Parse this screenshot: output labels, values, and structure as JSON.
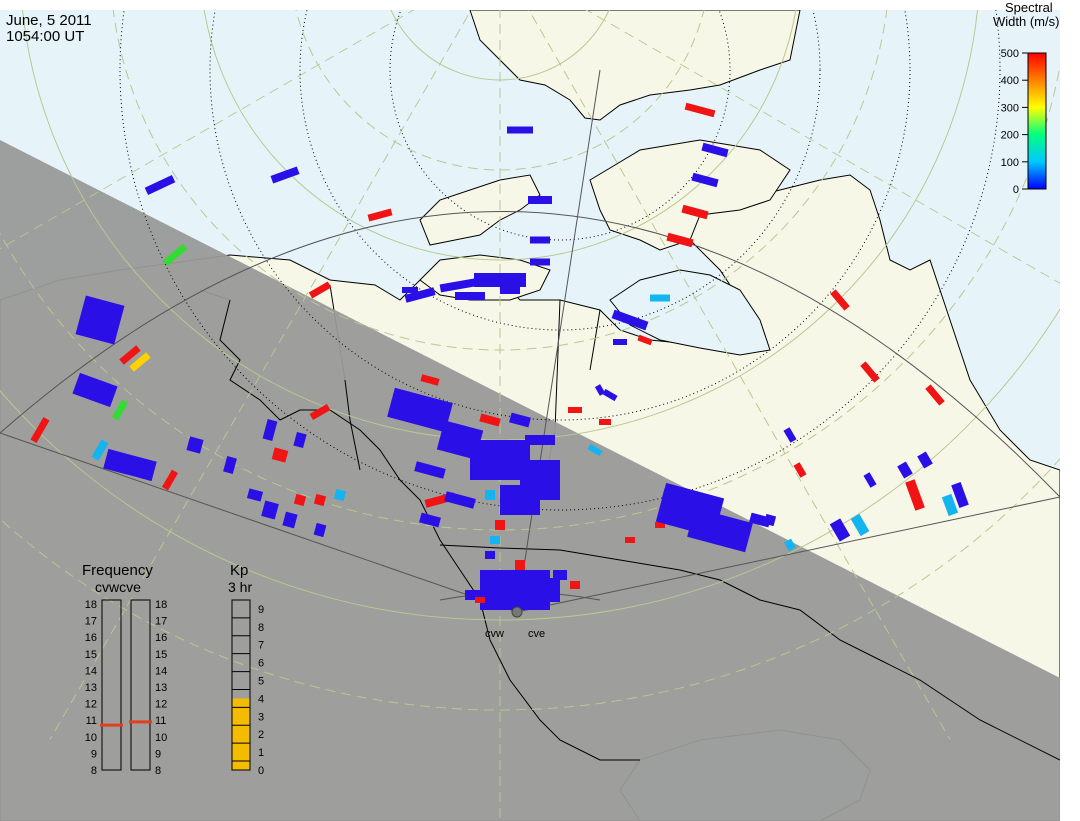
{
  "header": {
    "date": "June, 5 2011",
    "time": "1054:00 UT"
  },
  "colorbar": {
    "title_line1": "Spectral",
    "title_line2": "Width (m/s)",
    "ticks": [
      "500",
      "400",
      "300",
      "200",
      "100",
      "0"
    ],
    "gradient": [
      "#0000ff",
      "#00c8ff",
      "#00ff80",
      "#ffff00",
      "#ff8000",
      "#ff0000"
    ]
  },
  "frequency": {
    "title": "Frequency",
    "radars_label": "cvwcve",
    "ticks": [
      "18",
      "17",
      "16",
      "15",
      "14",
      "13",
      "12",
      "11",
      "10",
      "9",
      "8"
    ],
    "cvw_mhz": 10.7,
    "cve_mhz": 10.9,
    "marker_color": "#e0401a"
  },
  "kp": {
    "title": "Kp",
    "subtitle": "3 hr",
    "ticks": [
      "9",
      "8",
      "7",
      "6",
      "5",
      "4",
      "3",
      "2",
      "1",
      "0"
    ],
    "value": 4,
    "fill_color": "#f4bc00"
  },
  "radars": [
    {
      "label": "cvw"
    },
    {
      "label": "cve"
    }
  ],
  "map": {
    "ocean_color": "#e6f4fa",
    "land_color": "#f7f7e8",
    "night_color": "#999999",
    "grid_color": "#b8c890",
    "fov_color": "#555555"
  }
}
